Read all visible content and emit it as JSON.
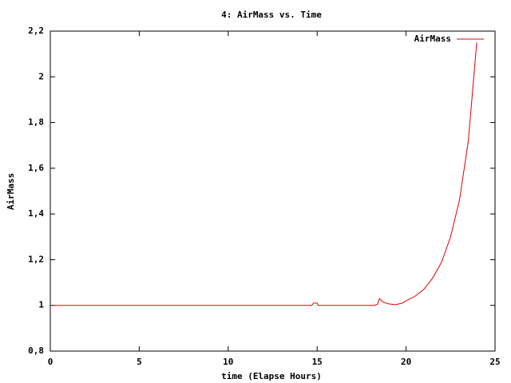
{
  "chart_data": {
    "type": "line",
    "title": "4: AirMass vs. Time",
    "x_label": "time (Elapse Hours)",
    "y_label": "AirMass",
    "x": [
      0,
      14.7,
      14.8,
      15,
      15.05,
      18.2,
      18.4,
      18.5,
      18.7,
      19,
      19.4,
      19.8,
      20,
      20.5,
      21,
      21.5,
      22,
      22.5,
      23,
      23.5,
      23.97
    ],
    "series": [
      {
        "name": "AirMass",
        "color": "#e00000",
        "values": [
          1,
          1,
          1.01,
          1.01,
          1,
          1,
          1.005,
          1.03,
          1.015,
          1.007,
          1.003,
          1.01,
          1.02,
          1.04,
          1.07,
          1.12,
          1.19,
          1.3,
          1.46,
          1.72,
          2.15
        ]
      }
    ],
    "xlim": [
      0,
      25
    ],
    "xticks": [
      0,
      5,
      10,
      15,
      20,
      25
    ],
    "ylim": [
      0.8,
      2.2
    ],
    "yticks": [
      {
        "value": 0.8,
        "label": "0,8"
      },
      1,
      {
        "value": 1.2,
        "label": "1,2"
      },
      {
        "value": 1.4,
        "label": "1,4"
      },
      {
        "value": 1.6,
        "label": "1,6"
      },
      {
        "value": 1.8,
        "label": "1,8"
      },
      2,
      {
        "value": 2.2,
        "label": "2,2"
      }
    ],
    "legend": "top-right",
    "grid": false
  }
}
